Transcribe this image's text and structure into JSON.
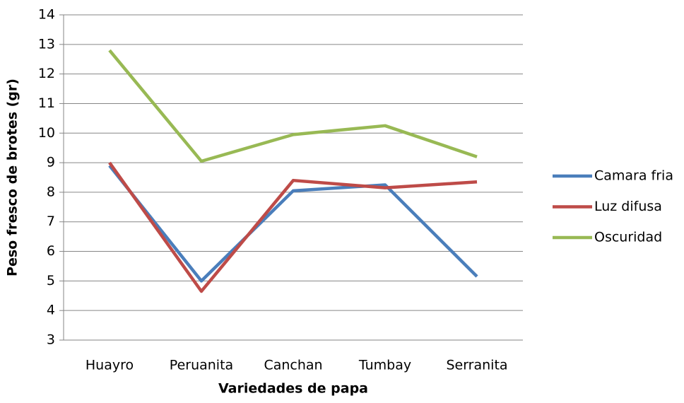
{
  "chart_data": {
    "type": "line",
    "categories": [
      "Huayro",
      "Peruanita",
      "Canchan",
      "Tumbay",
      "Serranita"
    ],
    "series": [
      {
        "name": "Camara fria",
        "color": "#4a7ebb",
        "values": [
          8.9,
          5.0,
          8.05,
          8.25,
          5.15
        ]
      },
      {
        "name": "Luz difusa",
        "color": "#be4b48",
        "values": [
          9.0,
          4.65,
          8.4,
          8.15,
          8.35
        ]
      },
      {
        "name": "Oscuridad",
        "color": "#98b954",
        "values": [
          12.8,
          9.05,
          9.95,
          10.25,
          9.2
        ]
      }
    ],
    "x_label": "Variedades de papa",
    "y_label": "Peso  fresco de brotes (gr)",
    "ylim": [
      3,
      14
    ],
    "yticks": [
      3,
      4,
      5,
      6,
      7,
      8,
      9,
      10,
      11,
      12,
      13,
      14
    ],
    "grid": true,
    "legend": "right"
  }
}
